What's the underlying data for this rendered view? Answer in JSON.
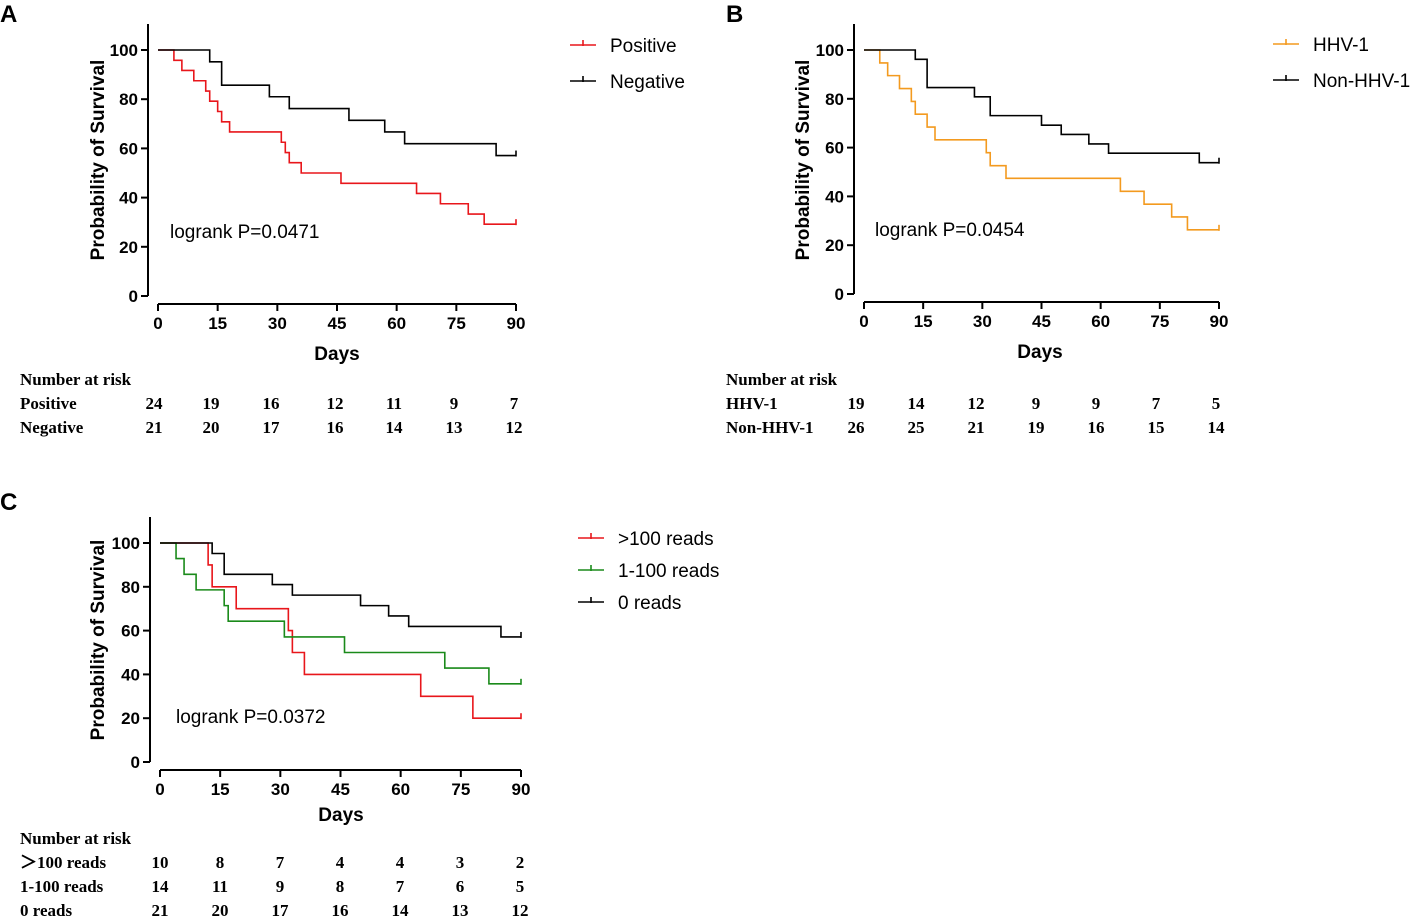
{
  "chart_data": [
    {
      "panel": "A",
      "type": "line",
      "subtype": "kaplan-meier",
      "xlabel": "Days",
      "ylabel": "Probability of Survival",
      "xlim": [
        0,
        90
      ],
      "ylim": [
        0,
        100
      ],
      "xticks": [
        0,
        15,
        30,
        45,
        60,
        75,
        90
      ],
      "yticks": [
        0,
        20,
        40,
        60,
        80,
        100
      ],
      "annotation": "logrank P=0.0471",
      "series": [
        {
          "name": "Positive",
          "color": "#e8161b",
          "steps": [
            [
              0,
              100
            ],
            [
              4,
              95.8
            ],
            [
              6,
              91.7
            ],
            [
              9,
              87.5
            ],
            [
              12,
              83.3
            ],
            [
              13,
              79.2
            ],
            [
              15,
              75
            ],
            [
              16,
              70.8
            ],
            [
              18,
              66.7
            ],
            [
              31,
              62.5
            ],
            [
              32,
              58.3
            ],
            [
              33,
              54.2
            ],
            [
              36,
              50
            ],
            [
              46,
              45.8
            ],
            [
              65,
              41.7
            ],
            [
              71,
              37.5
            ],
            [
              78,
              33.3
            ],
            [
              82,
              29.2
            ],
            [
              90,
              29.2
            ]
          ],
          "censor": [
            90
          ]
        },
        {
          "name": "Negative",
          "color": "#000000",
          "steps": [
            [
              0,
              100
            ],
            [
              13,
              95.2
            ],
            [
              16,
              85.7
            ],
            [
              28,
              81
            ],
            [
              33,
              76.2
            ],
            [
              48,
              71.4
            ],
            [
              57,
              66.7
            ],
            [
              62,
              61.9
            ],
            [
              85,
              57.1
            ],
            [
              90,
              57.1
            ]
          ],
          "censor": [
            90
          ]
        }
      ],
      "risk_table": {
        "heading": "Number at risk",
        "rows": [
          {
            "label": "Positive",
            "values": [
              24,
              19,
              16,
              12,
              11,
              9,
              7
            ]
          },
          {
            "label": "Negative",
            "values": [
              21,
              20,
              17,
              16,
              14,
              13,
              12
            ]
          }
        ]
      }
    },
    {
      "panel": "B",
      "type": "line",
      "subtype": "kaplan-meier",
      "xlabel": "Days",
      "ylabel": "Probability of Survival",
      "xlim": [
        0,
        90
      ],
      "ylim": [
        0,
        100
      ],
      "xticks": [
        0,
        15,
        30,
        45,
        60,
        75,
        90
      ],
      "yticks": [
        0,
        20,
        40,
        60,
        80,
        100
      ],
      "annotation": "logrank P=0.0454",
      "series": [
        {
          "name": "HHV-1",
          "color": "#f39a1f",
          "steps": [
            [
              0,
              100
            ],
            [
              4,
              94.7
            ],
            [
              6,
              89.5
            ],
            [
              9,
              84.2
            ],
            [
              12,
              78.9
            ],
            [
              13,
              73.7
            ],
            [
              16,
              68.4
            ],
            [
              18,
              63.2
            ],
            [
              31,
              57.9
            ],
            [
              32,
              52.6
            ],
            [
              36,
              47.4
            ],
            [
              65,
              42.1
            ],
            [
              71,
              36.8
            ],
            [
              78,
              31.6
            ],
            [
              82,
              26.3
            ],
            [
              90,
              26.3
            ]
          ],
          "censor": [
            90
          ]
        },
        {
          "name": "Non-HHV-1",
          "color": "#000000",
          "steps": [
            [
              0,
              100
            ],
            [
              13,
              96.2
            ],
            [
              16,
              84.6
            ],
            [
              28,
              80.8
            ],
            [
              32,
              73.1
            ],
            [
              45,
              69.2
            ],
            [
              50,
              65.4
            ],
            [
              57,
              61.5
            ],
            [
              62,
              57.7
            ],
            [
              85,
              53.8
            ],
            [
              90,
              53.8
            ]
          ],
          "censor": [
            90
          ]
        }
      ],
      "risk_table": {
        "heading": "Number at risk",
        "rows": [
          {
            "label": "HHV-1",
            "values": [
              19,
              14,
              12,
              9,
              9,
              7,
              5
            ]
          },
          {
            "label": "Non-HHV-1",
            "values": [
              26,
              25,
              21,
              19,
              16,
              15,
              14
            ]
          }
        ]
      }
    },
    {
      "panel": "C",
      "type": "line",
      "subtype": "kaplan-meier",
      "xlabel": "Days",
      "ylabel": "Probability of Survival",
      "xlim": [
        0,
        90
      ],
      "ylim": [
        0,
        100
      ],
      "xticks": [
        0,
        15,
        30,
        45,
        60,
        75,
        90
      ],
      "yticks": [
        0,
        20,
        40,
        60,
        80,
        100
      ],
      "annotation": "logrank P=0.0372",
      "series": [
        {
          "name": ">100 reads",
          "color": "#e8161b",
          "steps": [
            [
              0,
              100
            ],
            [
              12,
              90
            ],
            [
              13,
              80
            ],
            [
              19,
              70
            ],
            [
              32,
              60
            ],
            [
              33,
              50
            ],
            [
              36,
              40
            ],
            [
              65,
              30
            ],
            [
              78,
              20
            ],
            [
              90,
              20
            ]
          ],
          "censor": [
            90
          ]
        },
        {
          "name": "1-100 reads",
          "color": "#1a8a1a",
          "steps": [
            [
              0,
              100
            ],
            [
              4,
              92.9
            ],
            [
              6,
              85.7
            ],
            [
              9,
              78.6
            ],
            [
              16,
              71.4
            ],
            [
              17,
              64.3
            ],
            [
              31,
              57.1
            ],
            [
              46,
              50
            ],
            [
              71,
              42.9
            ],
            [
              82,
              35.7
            ],
            [
              90,
              35.7
            ]
          ],
          "censor": [
            90
          ]
        },
        {
          "name": "0 reads",
          "color": "#000000",
          "steps": [
            [
              0,
              100
            ],
            [
              13,
              95.2
            ],
            [
              16,
              85.7
            ],
            [
              28,
              81
            ],
            [
              33,
              76.2
            ],
            [
              50,
              71.4
            ],
            [
              57,
              66.7
            ],
            [
              62,
              61.9
            ],
            [
              85,
              57.1
            ],
            [
              90,
              57.1
            ]
          ],
          "censor": [
            90
          ]
        }
      ],
      "risk_table": {
        "heading": "Number at risk",
        "rows": [
          {
            "label": "＞100 reads",
            "values": [
              10,
              8,
              7,
              4,
              4,
              3,
              2
            ]
          },
          {
            "label": "1-100 reads",
            "values": [
              14,
              11,
              9,
              8,
              7,
              6,
              5
            ]
          },
          {
            "label": "0 reads",
            "values": [
              21,
              20,
              17,
              16,
              14,
              13,
              12
            ]
          }
        ]
      }
    }
  ]
}
